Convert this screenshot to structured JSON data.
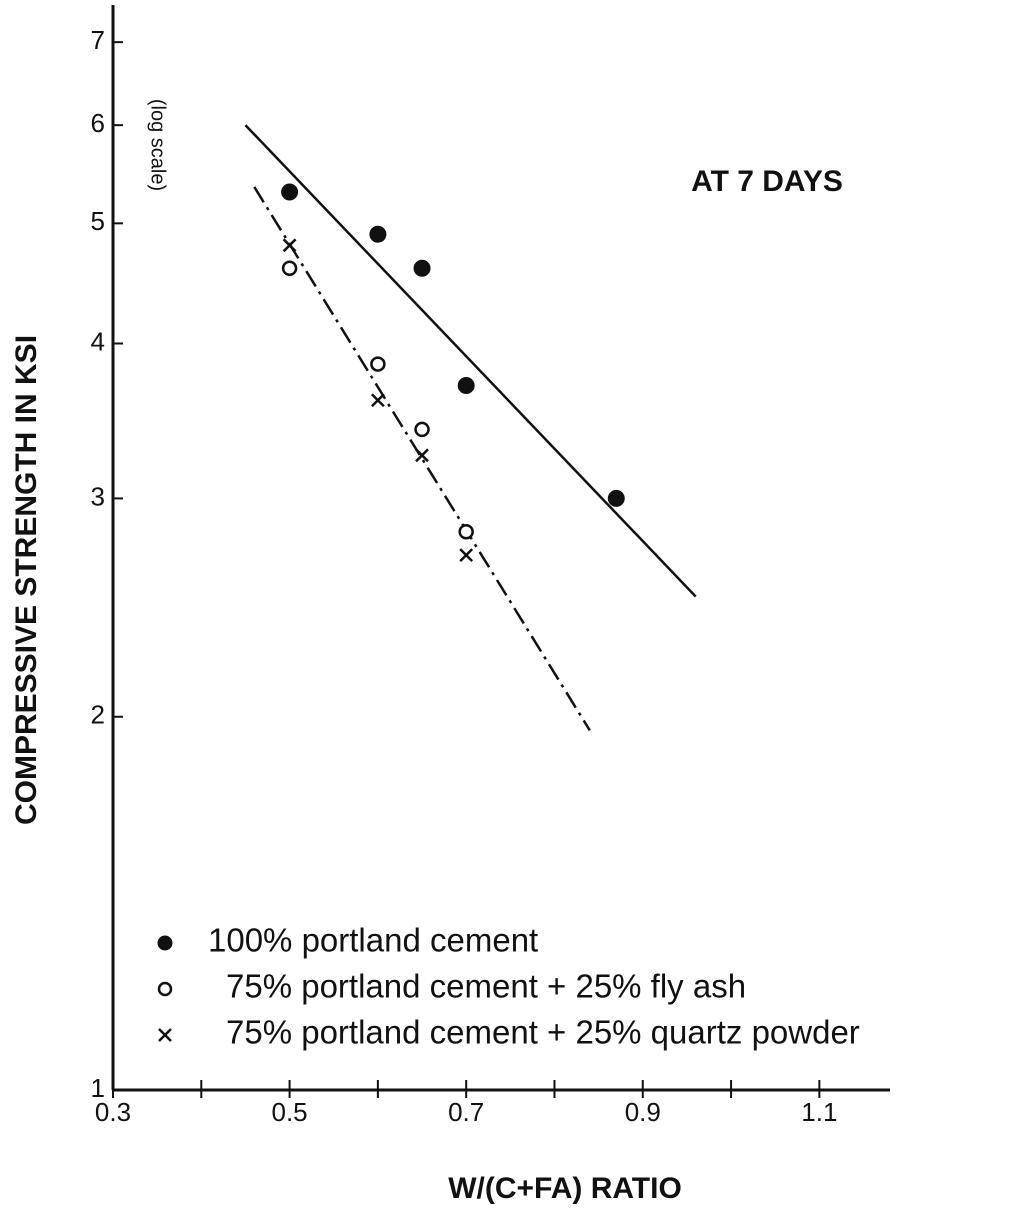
{
  "chart_data": {
    "type": "scatter",
    "annotation": "AT 7 DAYS",
    "y_label": "COMPRESSIVE STRENGTH IN KSI",
    "y_scale_note": "(log scale)",
    "x_label": "W/(C+FA) RATIO",
    "log_y": true,
    "color": "#111111",
    "legend": "lower left",
    "xlim": [
      0.3,
      1.18
    ],
    "xticks": [
      0.3,
      0.5,
      0.7,
      0.9,
      1.1
    ],
    "xminor_ticks": [
      0.4,
      0.6,
      0.8,
      1.0
    ],
    "ylim": [
      1,
      7.5
    ],
    "yticks": [
      1,
      2,
      3,
      4,
      5,
      6,
      7
    ],
    "series": [
      {
        "name": "100% portland cement",
        "marker": "filled-circle",
        "x": [
          0.5,
          0.6,
          0.65,
          0.7,
          0.87
        ],
        "values": [
          5.3,
          4.9,
          4.6,
          3.7,
          3.0
        ]
      },
      {
        "name": "75% portland cement + 25% fly ash",
        "marker": "open-circle",
        "x": [
          0.5,
          0.6,
          0.65,
          0.7
        ],
        "values": [
          4.6,
          3.85,
          3.41,
          2.82
        ]
      },
      {
        "name": "75% portland cement + 25% quartz powder",
        "marker": "cross",
        "x": [
          0.5,
          0.6,
          0.65,
          0.7
        ],
        "values": [
          4.8,
          3.6,
          3.25,
          2.7
        ]
      }
    ],
    "trend_lines": [
      {
        "style": "solid",
        "x": [
          0.45,
          0.96
        ],
        "values": [
          6.0,
          2.5
        ]
      },
      {
        "style": "dash-dot",
        "x": [
          0.46,
          0.84
        ],
        "values": [
          5.35,
          1.95
        ]
      }
    ]
  }
}
